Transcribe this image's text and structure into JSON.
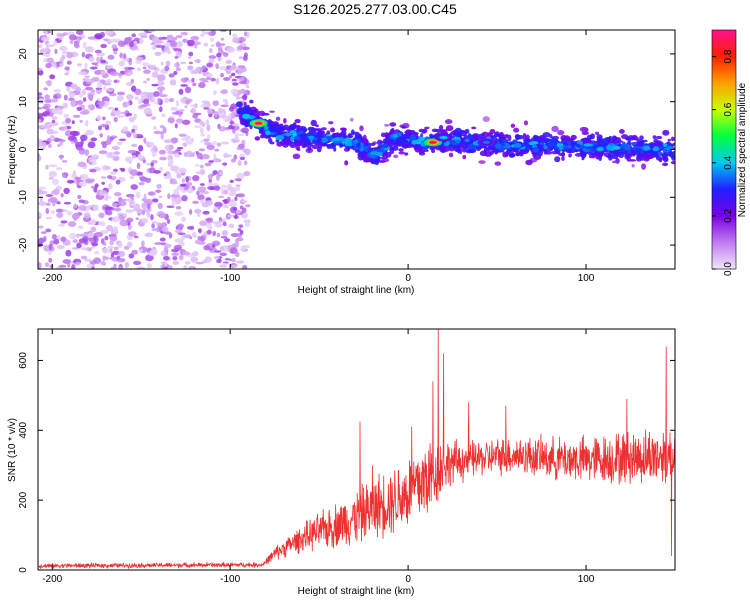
{
  "title": "S126.2025.277.03.00.C45",
  "chart_data": [
    {
      "type": "heatmap",
      "xlabel": "Height of straight line (km)",
      "ylabel": "Frequency (Hz)",
      "xlim": [
        -208,
        150
      ],
      "ylim": [
        -25,
        25
      ],
      "xticks": [
        -200,
        -100,
        0,
        100
      ],
      "xtick_labels": [
        "-200",
        "-100",
        "0",
        "100"
      ],
      "yticks": [
        -20,
        -10,
        0,
        10,
        20
      ],
      "ytick_labels": [
        "-20",
        "-10",
        "0",
        "10",
        "20"
      ],
      "colorbar": {
        "label": "Normalized spectral amplitude",
        "range": [
          0,
          0.9
        ],
        "ticks": [
          0,
          0.2,
          0.4,
          0.6,
          0.8
        ],
        "tick_labels": [
          "0.0",
          "0.2",
          "0.4",
          "0.6",
          "0.8"
        ],
        "colors": [
          "#f0e6fb",
          "#c07bf0",
          "#7a00e6",
          "#2020ff",
          "#00c8f0",
          "#00ff40",
          "#c8ff00",
          "#ffa000",
          "#ff2000",
          "#ff1090"
        ]
      },
      "noise_region": {
        "x": [
          -208,
          -90
        ],
        "y": [
          -25,
          25
        ],
        "amplitude": [
          0.02,
          0.16
        ]
      },
      "ridge": [
        {
          "x": -95,
          "y": 8
        },
        {
          "x": -85,
          "y": 5.5
        },
        {
          "x": -70,
          "y": 3
        },
        {
          "x": -50,
          "y": 2.5
        },
        {
          "x": -30,
          "y": 1.5
        },
        {
          "x": -18,
          "y": -1.5
        },
        {
          "x": -8,
          "y": 2.5
        },
        {
          "x": 10,
          "y": 1.5
        },
        {
          "x": 20,
          "y": 2
        },
        {
          "x": 40,
          "y": 1.5
        },
        {
          "x": 60,
          "y": 1
        },
        {
          "x": 80,
          "y": 1
        },
        {
          "x": 100,
          "y": 0.5
        },
        {
          "x": 120,
          "y": 0.5
        },
        {
          "x": 150,
          "y": 0
        }
      ],
      "hotspots": [
        {
          "x": -84,
          "y": 5.5,
          "amplitude": 0.85
        },
        {
          "x": 14,
          "y": 1.5,
          "amplitude": 0.85
        },
        {
          "x": 20,
          "y": 2.5,
          "amplitude": 0.4
        },
        {
          "x": 44,
          "y": 1.5,
          "amplitude": 0.35
        }
      ]
    },
    {
      "type": "line",
      "xlabel": "Height of straight line (km)",
      "ylabel": "SNR (10 * v/v)",
      "xlim": [
        -208,
        150
      ],
      "ylim": [
        0,
        690
      ],
      "xticks": [
        -200,
        -100,
        0,
        100
      ],
      "xtick_labels": [
        "-200",
        "-100",
        "0",
        "100"
      ],
      "yticks": [
        0,
        200,
        400,
        600
      ],
      "ytick_labels": [
        "0",
        "200",
        "400",
        "600"
      ],
      "series": [
        {
          "name": "SNR",
          "color": "#ee3030",
          "profile": [
            {
              "x": -208,
              "y": 12,
              "amp": 8
            },
            {
              "x": -82,
              "y": 15,
              "amp": 8
            },
            {
              "x": -74,
              "y": 50,
              "amp": 25
            },
            {
              "x": -60,
              "y": 90,
              "amp": 45
            },
            {
              "x": -45,
              "y": 120,
              "amp": 70
            },
            {
              "x": -30,
              "y": 150,
              "amp": 90
            },
            {
              "x": -15,
              "y": 190,
              "amp": 110
            },
            {
              "x": 0,
              "y": 220,
              "amp": 130
            },
            {
              "x": 10,
              "y": 260,
              "amp": 150
            },
            {
              "x": 22,
              "y": 305,
              "amp": 80
            },
            {
              "x": 40,
              "y": 320,
              "amp": 60
            },
            {
              "x": 60,
              "y": 330,
              "amp": 65
            },
            {
              "x": 80,
              "y": 320,
              "amp": 70
            },
            {
              "x": 100,
              "y": 315,
              "amp": 80
            },
            {
              "x": 120,
              "y": 320,
              "amp": 90
            },
            {
              "x": 150,
              "y": 330,
              "amp": 100
            }
          ],
          "spikes": [
            {
              "x": -27,
              "y": 425
            },
            {
              "x": -20,
              "y": 300
            },
            {
              "x": 2,
              "y": 410
            },
            {
              "x": 14,
              "y": 540
            },
            {
              "x": 17,
              "y": 690
            },
            {
              "x": 20,
              "y": 620
            },
            {
              "x": 34,
              "y": 480
            },
            {
              "x": 55,
              "y": 470
            },
            {
              "x": 123,
              "y": 490
            },
            {
              "x": 145,
              "y": 640
            },
            {
              "x": 148,
              "y": 40
            }
          ]
        }
      ]
    }
  ]
}
